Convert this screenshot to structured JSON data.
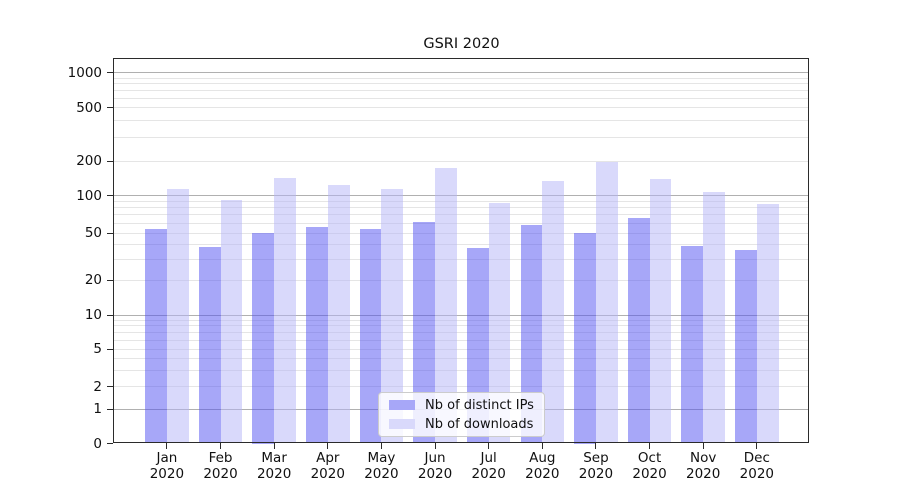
{
  "title": "GSRI 2020",
  "colors": {
    "bar_distinct_ips": "#a7a7f8",
    "bar_downloads": "#d9d9fb",
    "grid_major": "#b0b0b0",
    "grid_minor": "#e5e5e5",
    "axis": "#2b2b2b",
    "legend_border": "#cccccc"
  },
  "legend": {
    "items": [
      "Nb of distinct IPs",
      "Nb of downloads"
    ],
    "position": "lower center"
  },
  "chart_data": {
    "type": "bar",
    "title": "GSRI 2020",
    "categories": [
      "Jan 2020",
      "Feb 2020",
      "Mar 2020",
      "Apr 2020",
      "May 2020",
      "Jun 2020",
      "Jul 2020",
      "Aug 2020",
      "Sep 2020",
      "Oct 2020",
      "Nov 2020",
      "Dec 2020"
    ],
    "months": [
      "Jan",
      "Feb",
      "Mar",
      "Apr",
      "May",
      "Jun",
      "Jul",
      "Aug",
      "Sep",
      "Oct",
      "Nov",
      "Dec"
    ],
    "year": "2020",
    "series": [
      {
        "name": "Nb of distinct IPs",
        "color": "#a7a7f8",
        "values": [
          54,
          38,
          50,
          56,
          54,
          61,
          37,
          58,
          50,
          66,
          39,
          36
        ]
      },
      {
        "name": "Nb of downloads",
        "color": "#d9d9fb",
        "values": [
          115,
          93,
          143,
          125,
          114,
          175,
          87,
          135,
          196,
          140,
          108,
          85
        ]
      }
    ],
    "yscale": "symlog",
    "ylim": [
      0,
      1300
    ],
    "y_ticks": [
      0,
      1,
      2,
      5,
      10,
      20,
      50,
      100,
      200,
      500,
      1000
    ],
    "y_minor_gridlines": [
      2,
      3,
      4,
      5,
      6,
      7,
      8,
      9,
      20,
      30,
      40,
      50,
      60,
      70,
      80,
      90,
      200,
      300,
      400,
      500,
      600,
      700,
      800,
      900
    ],
    "y_major_gridlines": [
      1,
      10,
      100,
      1000
    ],
    "grid": true,
    "xlabel": "",
    "ylabel": ""
  }
}
